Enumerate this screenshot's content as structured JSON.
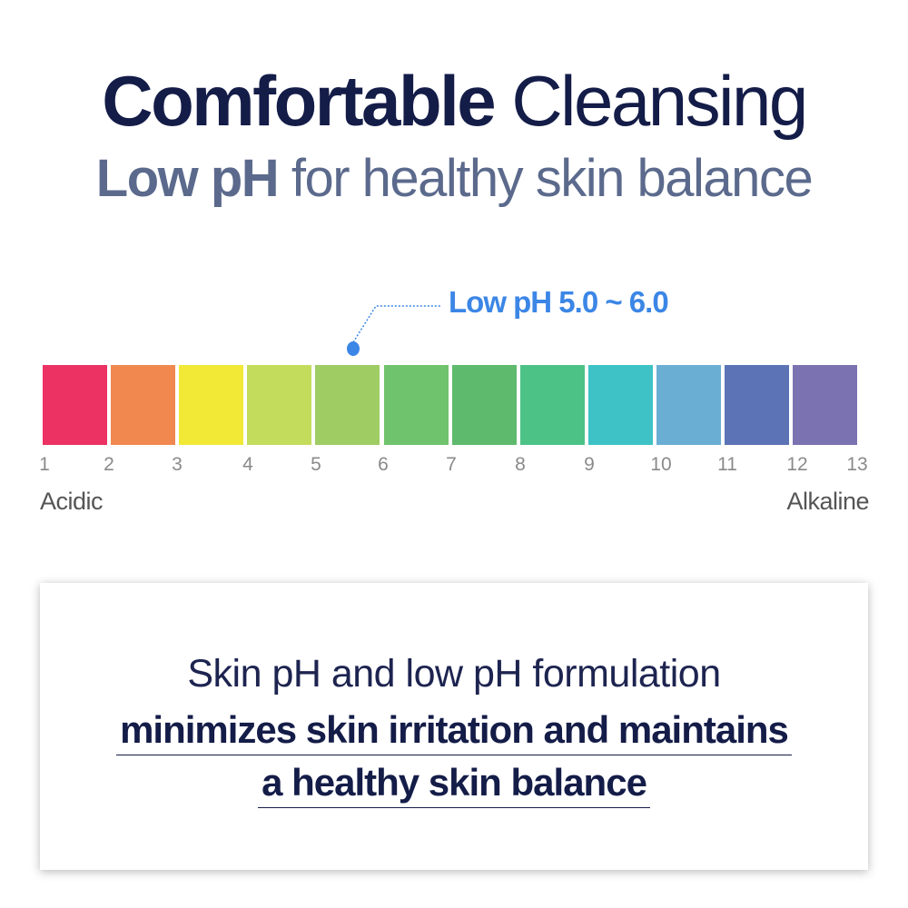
{
  "heading": {
    "line1_bold": "Comfortable",
    "line1_light": "Cleansing",
    "line2_bold": "Low pH",
    "line2_light": "for healthy skin balance"
  },
  "ph_scale": {
    "callout": "Low pH 5.0 ~ 6.0",
    "marker_value": 5.5,
    "colors": [
      "#ec3163",
      "#f08850",
      "#f2e936",
      "#c4dc5c",
      "#9fcd63",
      "#6fc36c",
      "#5eba6c",
      "#4cc287",
      "#3ec2c6",
      "#6aaed4",
      "#5c73b6",
      "#7b72b1"
    ],
    "ticks": [
      "1",
      "2",
      "3",
      "4",
      "5",
      "6",
      "7",
      "8",
      "9",
      "10",
      "11",
      "12",
      "13"
    ],
    "left_label": "Acidic",
    "right_label": "Alkaline",
    "accent": "#3b86e6"
  },
  "card": {
    "line1": "Skin pH and low pH formulation",
    "line2": "minimizes skin irritation and maintains",
    "line3": "a healthy skin balance"
  }
}
